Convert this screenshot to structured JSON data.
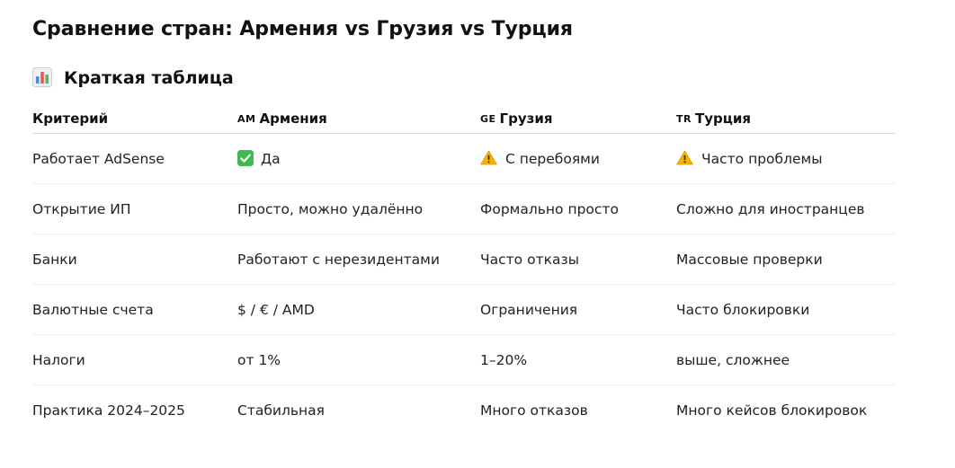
{
  "title": "Сравнение стран: Армения vs Грузия vs Турция",
  "section": {
    "icon": "bar-chart-icon",
    "title": "Краткая таблица"
  },
  "table": {
    "headers": [
      {
        "flag": "",
        "label": "Критерий"
      },
      {
        "flag": "AM",
        "label": "Армения"
      },
      {
        "flag": "GE",
        "label": "Грузия"
      },
      {
        "flag": "TR",
        "label": "Турция"
      }
    ],
    "rows": [
      {
        "criterion": "Работает AdSense",
        "armenia": {
          "icon": "check-mark-icon",
          "text": "Да"
        },
        "georgia": {
          "icon": "warning-icon",
          "text": "С перебоями"
        },
        "turkey": {
          "icon": "warning-icon",
          "text": "Часто проблемы"
        }
      },
      {
        "criterion": "Открытие ИП",
        "armenia": {
          "text": "Просто, можно удалённо"
        },
        "georgia": {
          "text": "Формально просто"
        },
        "turkey": {
          "text": "Сложно для иностранцев"
        }
      },
      {
        "criterion": "Банки",
        "armenia": {
          "text": "Работают с нерезидентами"
        },
        "georgia": {
          "text": "Часто отказы"
        },
        "turkey": {
          "text": "Массовые проверки"
        }
      },
      {
        "criterion": "Валютные счета",
        "armenia": {
          "text": "$ / € / AMD"
        },
        "georgia": {
          "text": "Ограничения"
        },
        "turkey": {
          "text": "Часто блокировки"
        }
      },
      {
        "criterion": "Налоги",
        "armenia": {
          "text": "от 1%"
        },
        "georgia": {
          "text": "1–20%"
        },
        "turkey": {
          "text": "выше, сложнее"
        }
      },
      {
        "criterion": "Практика 2024–2025",
        "armenia": {
          "text": "Стабильная"
        },
        "georgia": {
          "text": "Много отказов"
        },
        "turkey": {
          "text": "Много кейсов блокировок"
        }
      }
    ]
  },
  "colors": {
    "check_green": "#3fb950",
    "warning_yellow": "#f4b400",
    "chart_blue": "#4a8de0",
    "chart_red": "#e8574b",
    "chart_green": "#58b368"
  }
}
